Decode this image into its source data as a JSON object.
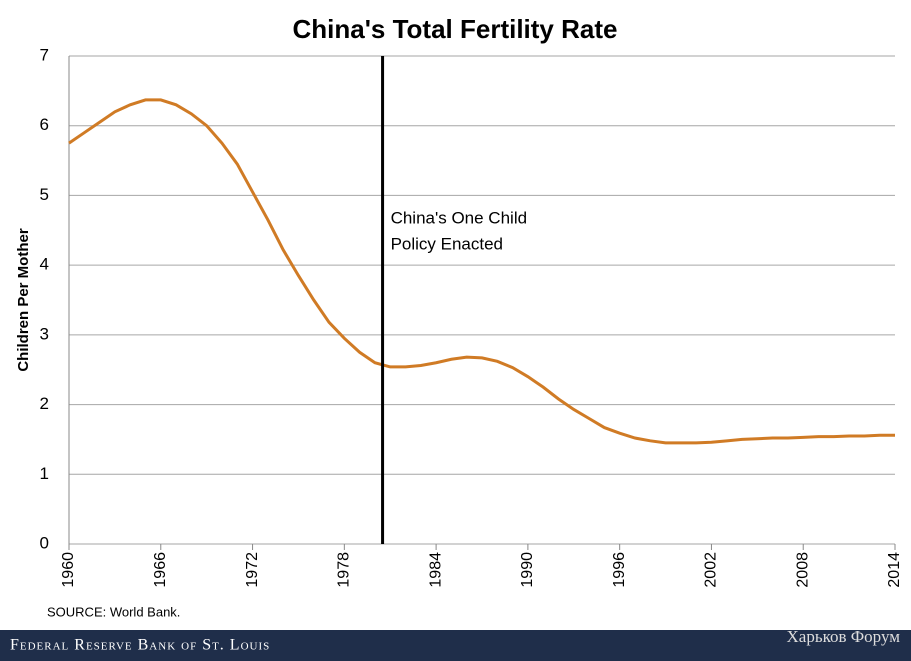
{
  "chart_data": {
    "type": "line",
    "title": "China's Total Fertility Rate",
    "y_label": "Children Per Mother",
    "x": [
      1960,
      1961,
      1962,
      1963,
      1964,
      1965,
      1966,
      1967,
      1968,
      1969,
      1970,
      1971,
      1972,
      1973,
      1974,
      1975,
      1976,
      1977,
      1978,
      1979,
      1980,
      1981,
      1982,
      1983,
      1984,
      1985,
      1986,
      1987,
      1988,
      1989,
      1990,
      1991,
      1992,
      1993,
      1994,
      1995,
      1996,
      1997,
      1998,
      1999,
      2000,
      2001,
      2002,
      2003,
      2004,
      2005,
      2006,
      2007,
      2008,
      2009,
      2010,
      2011,
      2012,
      2013,
      2014
    ],
    "series": [
      {
        "color": "#d07b25",
        "values": [
          5.75,
          5.9,
          6.05,
          6.2,
          6.3,
          6.37,
          6.37,
          6.3,
          6.17,
          6.0,
          5.75,
          5.45,
          5.05,
          4.65,
          4.22,
          3.85,
          3.5,
          3.18,
          2.95,
          2.75,
          2.6,
          2.54,
          2.54,
          2.56,
          2.6,
          2.65,
          2.68,
          2.67,
          2.62,
          2.53,
          2.4,
          2.25,
          2.08,
          1.93,
          1.8,
          1.67,
          1.59,
          1.52,
          1.48,
          1.45,
          1.45,
          1.45,
          1.46,
          1.48,
          1.5,
          1.51,
          1.52,
          1.52,
          1.53,
          1.54,
          1.54,
          1.55,
          1.55,
          1.56,
          1.56
        ]
      }
    ],
    "xlim": [
      1960,
      2014
    ],
    "xticks": [
      1960,
      1966,
      1972,
      1978,
      1984,
      1990,
      1996,
      2002,
      2008,
      2014
    ],
    "ylim": [
      0,
      7
    ],
    "yticks": [
      0,
      1,
      2,
      3,
      4,
      5,
      6,
      7
    ],
    "grid": true,
    "annotation": {
      "x": 1980.5,
      "lines": [
        "China's One Child",
        "Policy Enacted"
      ]
    },
    "source": "SOURCE: World Bank.",
    "footer": "Federal Reserve Bank of St. Louis",
    "watermark": "Харьков Форум"
  }
}
